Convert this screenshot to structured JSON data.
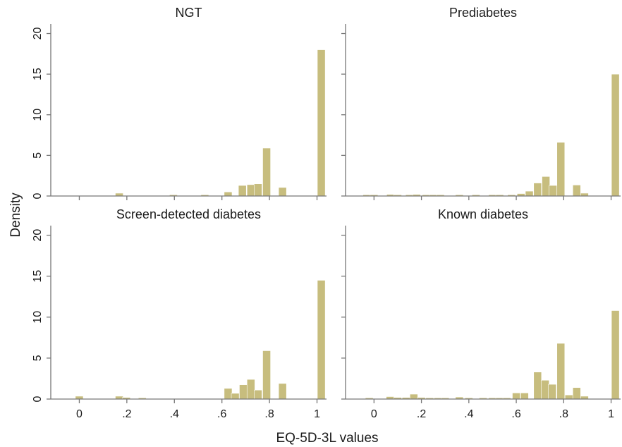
{
  "figure": {
    "xlabel": "EQ-5D-3L values",
    "ylabel": "Density"
  },
  "chart_data": [
    {
      "type": "bar",
      "title": "NGT",
      "xlim": [
        -0.12,
        1.04
      ],
      "ylim": [
        0,
        21
      ],
      "bin_width": 0.033,
      "xticks": [
        0,
        0.2,
        0.4,
        0.6,
        0.8,
        1
      ],
      "xtick_labels": [
        "0",
        ".2",
        ".4",
        ".6",
        ".8",
        "1"
      ],
      "yticks": [
        0,
        5,
        10,
        15,
        20
      ],
      "ytick_labels": [
        "0",
        "5",
        "10",
        "15",
        "20"
      ],
      "bar_color": "#c7bd7e",
      "bins": [
        {
          "x": 0.168,
          "value": 0.35
        },
        {
          "x": 0.396,
          "value": 0.15
        },
        {
          "x": 0.528,
          "value": 0.15
        },
        {
          "x": 0.626,
          "value": 0.5
        },
        {
          "x": 0.686,
          "value": 1.3
        },
        {
          "x": 0.722,
          "value": 1.4
        },
        {
          "x": 0.752,
          "value": 1.5
        },
        {
          "x": 0.788,
          "value": 5.9
        },
        {
          "x": 0.855,
          "value": 1.05
        },
        {
          "x": 1.018,
          "value": 18.0
        }
      ]
    },
    {
      "type": "bar",
      "title": "Prediabetes",
      "xlim": [
        -0.12,
        1.04
      ],
      "ylim": [
        0,
        21
      ],
      "bin_width": 0.033,
      "xticks": [
        0,
        0.2,
        0.4,
        0.6,
        0.8,
        1
      ],
      "xtick_labels": [
        "0",
        ".2",
        ".4",
        ".6",
        ".8",
        "1"
      ],
      "yticks": [
        0,
        5,
        10,
        15,
        20
      ],
      "ytick_labels": [
        "0",
        "5",
        "10",
        "15",
        "20"
      ],
      "bar_color": "#c7bd7e",
      "bins": [
        {
          "x": -0.03,
          "value": 0.15
        },
        {
          "x": 0.0,
          "value": 0.15
        },
        {
          "x": 0.07,
          "value": 0.2
        },
        {
          "x": 0.1,
          "value": 0.15
        },
        {
          "x": 0.15,
          "value": 0.15
        },
        {
          "x": 0.18,
          "value": 0.2
        },
        {
          "x": 0.22,
          "value": 0.15
        },
        {
          "x": 0.25,
          "value": 0.15
        },
        {
          "x": 0.28,
          "value": 0.15
        },
        {
          "x": 0.36,
          "value": 0.15
        },
        {
          "x": 0.43,
          "value": 0.15
        },
        {
          "x": 0.5,
          "value": 0.15
        },
        {
          "x": 0.53,
          "value": 0.15
        },
        {
          "x": 0.58,
          "value": 0.15
        },
        {
          "x": 0.62,
          "value": 0.3
        },
        {
          "x": 0.655,
          "value": 0.6
        },
        {
          "x": 0.69,
          "value": 1.6
        },
        {
          "x": 0.725,
          "value": 2.4
        },
        {
          "x": 0.755,
          "value": 1.3
        },
        {
          "x": 0.788,
          "value": 6.6
        },
        {
          "x": 0.855,
          "value": 1.35
        },
        {
          "x": 0.888,
          "value": 0.35
        },
        {
          "x": 1.018,
          "value": 15.0
        }
      ]
    },
    {
      "type": "bar",
      "title": "Screen-detected diabetes",
      "xlim": [
        -0.12,
        1.04
      ],
      "ylim": [
        0,
        21
      ],
      "bin_width": 0.033,
      "xticks": [
        0,
        0.2,
        0.4,
        0.6,
        0.8,
        1
      ],
      "xtick_labels": [
        "0",
        ".2",
        ".4",
        ".6",
        ".8",
        "1"
      ],
      "yticks": [
        0,
        5,
        10,
        15,
        20
      ],
      "ytick_labels": [
        "0",
        "5",
        "10",
        "15",
        "20"
      ],
      "bar_color": "#c7bd7e",
      "bins": [
        {
          "x": 0.0,
          "value": 0.35
        },
        {
          "x": 0.168,
          "value": 0.35
        },
        {
          "x": 0.198,
          "value": 0.2
        },
        {
          "x": 0.265,
          "value": 0.15
        },
        {
          "x": 0.626,
          "value": 1.3
        },
        {
          "x": 0.656,
          "value": 0.7
        },
        {
          "x": 0.69,
          "value": 1.75
        },
        {
          "x": 0.722,
          "value": 2.4
        },
        {
          "x": 0.752,
          "value": 1.1
        },
        {
          "x": 0.788,
          "value": 5.9
        },
        {
          "x": 0.855,
          "value": 1.9
        },
        {
          "x": 1.018,
          "value": 14.5
        }
      ]
    },
    {
      "type": "bar",
      "title": "Known diabetes",
      "xlim": [
        -0.12,
        1.04
      ],
      "ylim": [
        0,
        21
      ],
      "bin_width": 0.033,
      "xticks": [
        0,
        0.2,
        0.4,
        0.6,
        0.8,
        1
      ],
      "xtick_labels": [
        "0",
        ".2",
        ".4",
        ".6",
        ".8",
        "1"
      ],
      "yticks": [
        0,
        5,
        10,
        15,
        20
      ],
      "ytick_labels": [
        "0",
        "5",
        "10",
        "15",
        "20"
      ],
      "bar_color": "#c7bd7e",
      "bins": [
        {
          "x": -0.02,
          "value": 0.15
        },
        {
          "x": 0.068,
          "value": 0.3
        },
        {
          "x": 0.1,
          "value": 0.2
        },
        {
          "x": 0.135,
          "value": 0.2
        },
        {
          "x": 0.168,
          "value": 0.6
        },
        {
          "x": 0.2,
          "value": 0.2
        },
        {
          "x": 0.235,
          "value": 0.15
        },
        {
          "x": 0.27,
          "value": 0.15
        },
        {
          "x": 0.3,
          "value": 0.15
        },
        {
          "x": 0.36,
          "value": 0.25
        },
        {
          "x": 0.4,
          "value": 0.15
        },
        {
          "x": 0.46,
          "value": 0.15
        },
        {
          "x": 0.5,
          "value": 0.15
        },
        {
          "x": 0.53,
          "value": 0.15
        },
        {
          "x": 0.56,
          "value": 0.15
        },
        {
          "x": 0.6,
          "value": 0.75
        },
        {
          "x": 0.635,
          "value": 0.75
        },
        {
          "x": 0.69,
          "value": 3.3
        },
        {
          "x": 0.722,
          "value": 2.3
        },
        {
          "x": 0.752,
          "value": 1.8
        },
        {
          "x": 0.788,
          "value": 6.8
        },
        {
          "x": 0.822,
          "value": 0.5
        },
        {
          "x": 0.855,
          "value": 1.4
        },
        {
          "x": 0.888,
          "value": 0.35
        },
        {
          "x": 1.018,
          "value": 10.8
        }
      ]
    }
  ]
}
